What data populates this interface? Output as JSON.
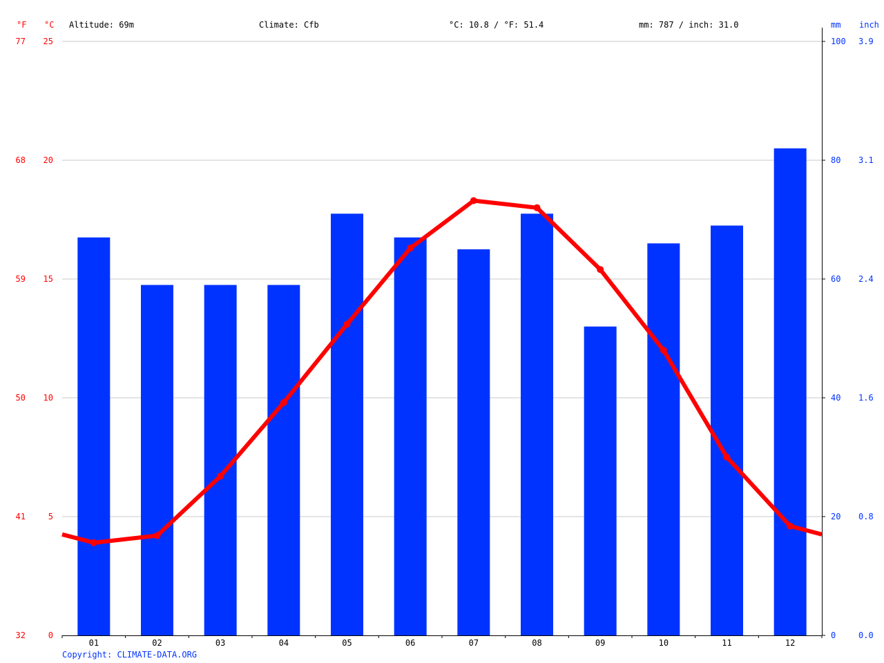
{
  "header": {
    "fahrenheit_unit": "°F",
    "celsius_unit": "°C",
    "altitude": "Altitude: 69m",
    "climate": "Climate: Cfb",
    "temperature_summary": "°C: 10.8 / °F: 51.4",
    "precipitation_summary": "mm: 787 / inch: 31.0",
    "mm_unit": "mm",
    "inch_unit": "inch"
  },
  "copyright": "Copyright: CLIMATE-DATA.ORG",
  "colors": {
    "temperature": "#ff0000",
    "precipitation": "#0033ff",
    "grid": "#c8c8c8"
  },
  "chart_data": {
    "type": "bar",
    "categories": [
      "01",
      "02",
      "03",
      "04",
      "05",
      "06",
      "07",
      "08",
      "09",
      "10",
      "11",
      "12"
    ],
    "series": [
      {
        "type": "bar",
        "axis": "right-mm",
        "values": [
          67,
          59,
          59,
          59,
          71,
          67,
          65,
          71,
          52,
          66,
          69,
          82
        ]
      },
      {
        "type": "line",
        "axis": "left-celsius",
        "values": [
          3.9,
          4.2,
          6.7,
          9.8,
          13.1,
          16.3,
          18.3,
          18.0,
          15.4,
          12.0,
          7.5,
          4.6
        ]
      }
    ],
    "y_left_celsius": {
      "ticks": [
        "0",
        "5",
        "10",
        "15",
        "20",
        "25"
      ],
      "range": [
        0,
        25
      ]
    },
    "y_left_fahrenheit": {
      "ticks": [
        "32",
        "41",
        "50",
        "59",
        "68",
        "77"
      ]
    },
    "y_right_mm": {
      "ticks": [
        "0",
        "20",
        "40",
        "60",
        "80",
        "100"
      ],
      "range": [
        0,
        100
      ]
    },
    "y_right_inch": {
      "ticks": [
        "0.0",
        "0.8",
        "1.6",
        "2.4",
        "3.1",
        "3.9"
      ]
    },
    "grid": true
  }
}
